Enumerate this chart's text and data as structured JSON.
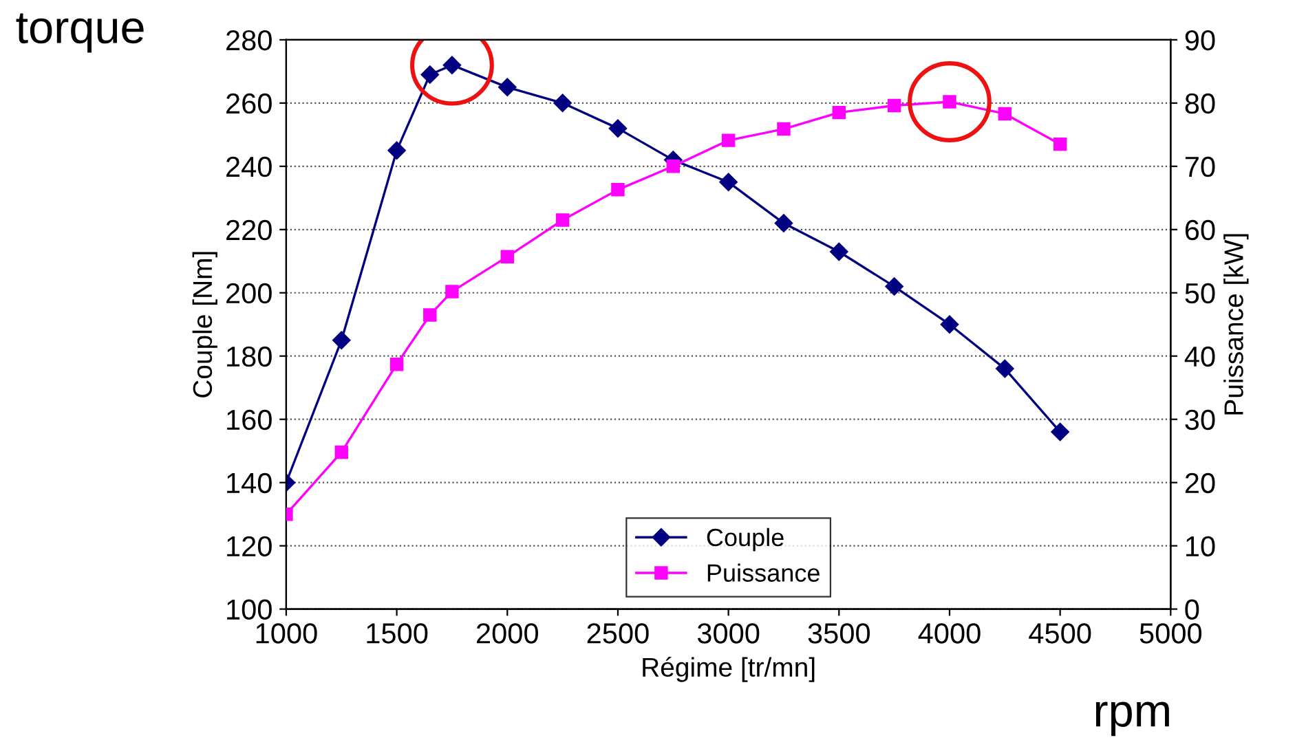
{
  "chart_data": {
    "type": "line",
    "xlabel": "Régime [tr/mn]",
    "ylabel": "Couple [Nm]",
    "y2label": "Puissance [kW]",
    "annotations": [
      "torque",
      "rpm"
    ],
    "x": [
      1000,
      1250,
      1500,
      1650,
      1750,
      2000,
      2250,
      2500,
      2750,
      3000,
      3250,
      3500,
      3750,
      4000,
      4250,
      4500
    ],
    "series": [
      {
        "name": "Couple",
        "color": "#000080",
        "marker": "diamond",
        "values": [
          140,
          185,
          245,
          269,
          272,
          265,
          260,
          252,
          242,
          235,
          222,
          213,
          202,
          190,
          176,
          156
        ]
      },
      {
        "name": "Puissance",
        "color": "#ff00ff",
        "marker": "square",
        "axis": "y2",
        "values": [
          15,
          24.8,
          38.7,
          46.5,
          50.2,
          55.7,
          61.5,
          66.3,
          70,
          74.1,
          75.9,
          78.5,
          79.6,
          80.2,
          78.3,
          73.5
        ]
      }
    ],
    "xlim": [
      1000,
      5000
    ],
    "xticks": [
      1000,
      1500,
      2000,
      2500,
      3000,
      3500,
      4000,
      4500,
      5000
    ],
    "ylim": [
      100,
      280
    ],
    "yticks": [
      100,
      120,
      140,
      160,
      180,
      200,
      220,
      240,
      260,
      280
    ],
    "y2lim": [
      0,
      90
    ],
    "y2ticks": [
      0,
      10,
      20,
      30,
      40,
      50,
      60,
      70,
      80,
      90
    ],
    "grid": "y",
    "legend": "bottom",
    "line_style": "solid"
  }
}
